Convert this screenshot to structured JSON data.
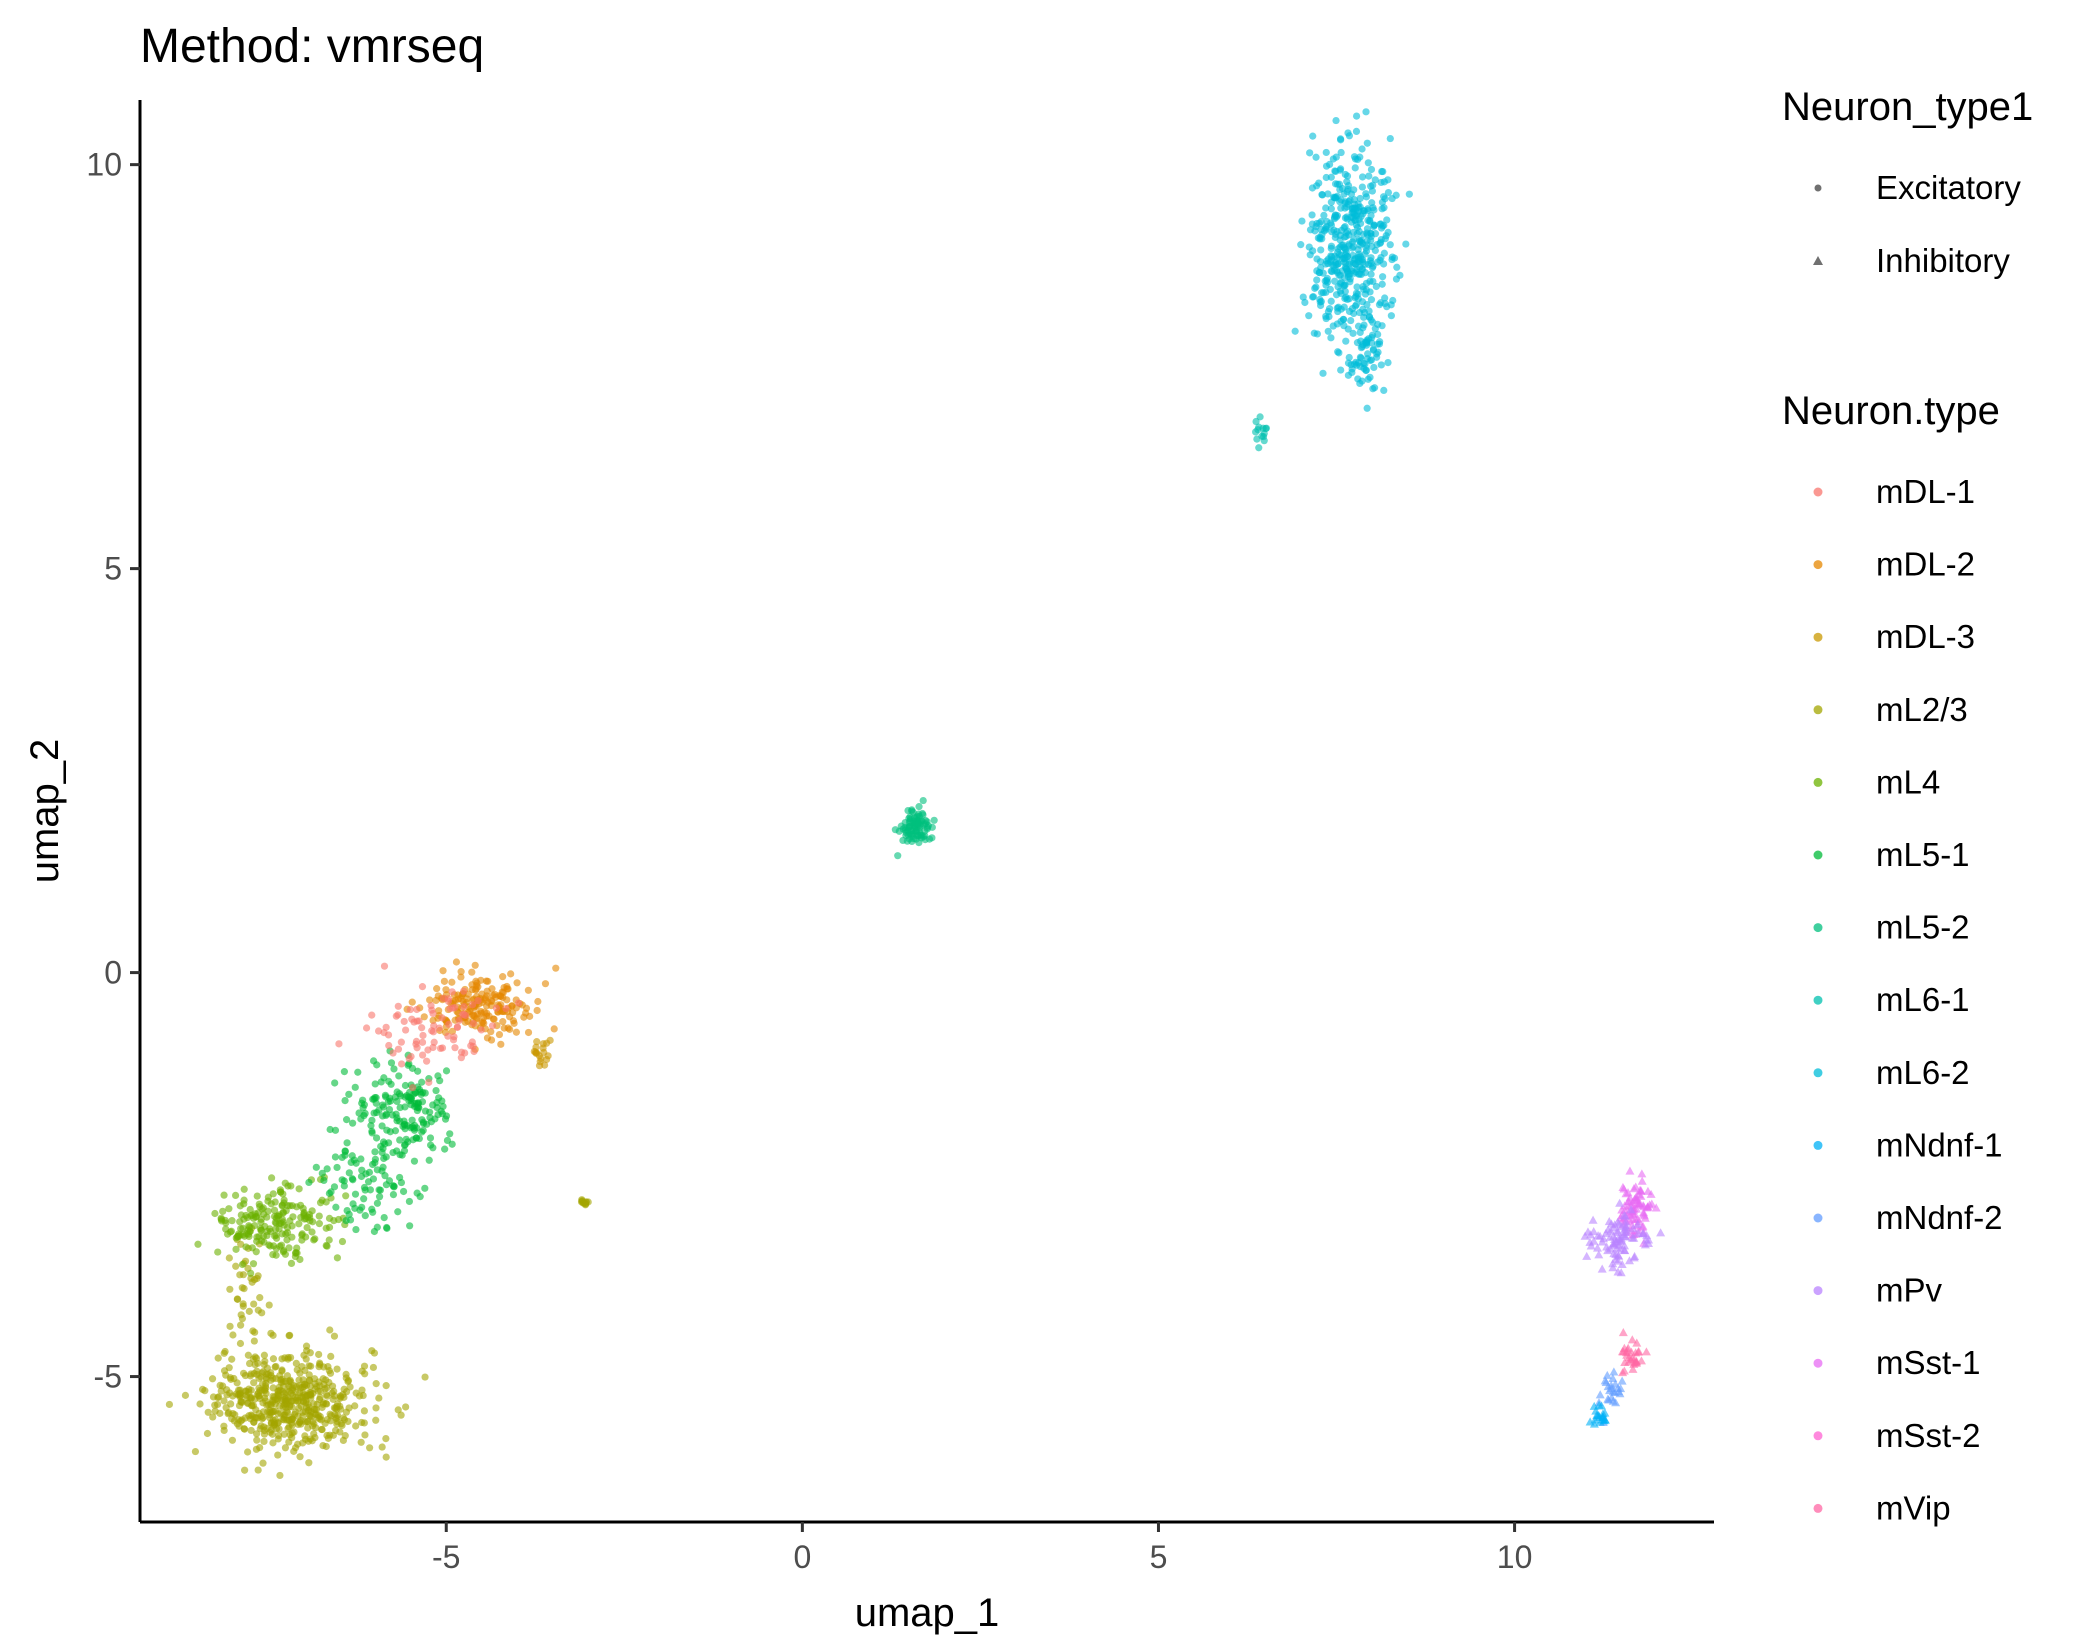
{
  "chart_data": {
    "type": "scatter",
    "title": "Method: vmrseq",
    "xlabel": "umap_1",
    "ylabel": "umap_2",
    "xlim": [
      -9.3,
      12.8
    ],
    "ylim": [
      -6.8,
      10.8
    ],
    "xticks": [
      -5,
      0,
      5,
      10
    ],
    "yticks": [
      -5,
      0,
      5,
      10
    ],
    "xtick_labels": [
      "-5",
      "0",
      "5",
      "10"
    ],
    "ytick_labels": [
      "-5",
      "0",
      "5",
      "10"
    ],
    "grid": false,
    "legend_position": "right",
    "shape_legend": {
      "title": "Neuron_type1",
      "items": [
        {
          "label": "Excitatory",
          "shape": "circle"
        },
        {
          "label": "Inhibitory",
          "shape": "triangle"
        }
      ]
    },
    "color_legend": {
      "title": "Neuron.type",
      "items": [
        {
          "label": "mDL-1",
          "color": "#F8766D"
        },
        {
          "label": "mDL-2",
          "color": "#E58700"
        },
        {
          "label": "mDL-3",
          "color": "#C99800"
        },
        {
          "label": "mL2/3",
          "color": "#A3A500"
        },
        {
          "label": "mL4",
          "color": "#6BB100"
        },
        {
          "label": "mL5-1",
          "color": "#00BA38"
        },
        {
          "label": "mL5-2",
          "color": "#00BF7D"
        },
        {
          "label": "mL6-1",
          "color": "#00C0AF"
        },
        {
          "label": "mL6-2",
          "color": "#00BCD8"
        },
        {
          "label": "mNdnf-1",
          "color": "#00B0F6"
        },
        {
          "label": "mNdnf-2",
          "color": "#619CFF"
        },
        {
          "label": "mPv",
          "color": "#B983FF"
        },
        {
          "label": "mSst-1",
          "color": "#E76BF3"
        },
        {
          "label": "mSst-2",
          "color": "#FD61D1"
        },
        {
          "label": "mVip",
          "color": "#FF67A4"
        }
      ]
    },
    "clusters": [
      {
        "type": "mL2/3",
        "shape": "circle",
        "center": [
          -7.2,
          -5.3
        ],
        "spread": [
          0.55,
          0.3
        ],
        "n": 520
      },
      {
        "type": "mL2/3",
        "shape": "circle",
        "center": [
          -7.8,
          -4.0
        ],
        "spread": [
          0.12,
          0.45
        ],
        "n": 40
      },
      {
        "type": "mL2/3",
        "shape": "circle",
        "center": [
          -3.05,
          -2.85
        ],
        "spread": [
          0.03,
          0.03
        ],
        "n": 12
      },
      {
        "type": "mL4",
        "shape": "circle",
        "center": [
          -7.4,
          -3.1
        ],
        "spread": [
          0.45,
          0.22
        ],
        "n": 200
      },
      {
        "type": "mL5-1",
        "shape": "circle",
        "center": [
          -5.6,
          -1.7
        ],
        "spread": [
          0.35,
          0.3
        ],
        "n": 170
      },
      {
        "type": "mL5-1",
        "shape": "circle",
        "center": [
          -6.1,
          -2.6
        ],
        "spread": [
          0.35,
          0.3
        ],
        "n": 90
      },
      {
        "type": "mDL-2",
        "shape": "circle",
        "center": [
          -4.5,
          -0.4
        ],
        "spread": [
          0.35,
          0.2
        ],
        "n": 190
      },
      {
        "type": "mDL-1",
        "shape": "circle",
        "center": [
          -5.2,
          -0.7
        ],
        "spread": [
          0.4,
          0.3
        ],
        "n": 85
      },
      {
        "type": "mDL-3",
        "shape": "circle",
        "center": [
          -3.65,
          -1.0
        ],
        "spread": [
          0.08,
          0.08
        ],
        "n": 18
      },
      {
        "type": "mL5-2",
        "shape": "circle",
        "center": [
          1.6,
          1.8
        ],
        "spread": [
          0.1,
          0.12
        ],
        "n": 90
      },
      {
        "type": "mL6-1",
        "shape": "circle",
        "center": [
          6.45,
          6.7
        ],
        "spread": [
          0.05,
          0.08
        ],
        "n": 14
      },
      {
        "type": "mL6-2",
        "shape": "circle",
        "center": [
          7.7,
          9.0
        ],
        "spread": [
          0.3,
          0.6
        ],
        "n": 460
      },
      {
        "type": "mL6-2",
        "shape": "circle",
        "center": [
          7.9,
          7.7
        ],
        "spread": [
          0.12,
          0.3
        ],
        "n": 60
      },
      {
        "type": "mSst-1",
        "shape": "triangle",
        "center": [
          11.7,
          -2.9
        ],
        "spread": [
          0.1,
          0.2
        ],
        "n": 80
      },
      {
        "type": "mPv",
        "shape": "triangle",
        "center": [
          11.45,
          -3.3
        ],
        "spread": [
          0.2,
          0.15
        ],
        "n": 90
      },
      {
        "type": "mVip",
        "shape": "triangle",
        "center": [
          11.65,
          -4.75
        ],
        "spread": [
          0.08,
          0.12
        ],
        "n": 30
      },
      {
        "type": "mNdnf-2",
        "shape": "triangle",
        "center": [
          11.35,
          -5.2
        ],
        "spread": [
          0.08,
          0.15
        ],
        "n": 25
      },
      {
        "type": "mNdnf-1",
        "shape": "triangle",
        "center": [
          11.2,
          -5.5
        ],
        "spread": [
          0.06,
          0.08
        ],
        "n": 20
      }
    ]
  }
}
